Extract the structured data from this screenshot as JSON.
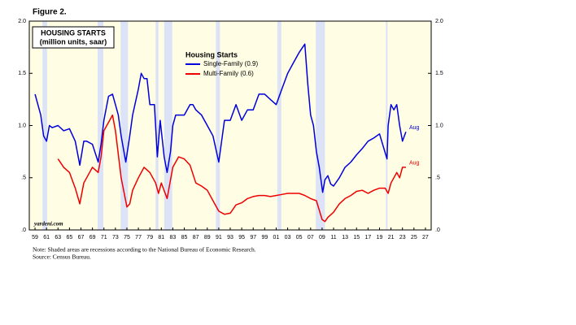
{
  "chart_data": {
    "type": "line",
    "figure_label": "Figure 2.",
    "title": "HOUSING STARTS",
    "subtitle": "(million units, saar)",
    "legend_title": "Housing Starts",
    "source_tag": "yardeni.com",
    "notes": [
      "Note: Shaded areas are recessions according to the National Bureau of Economic Research.",
      "Source: Census Bureau."
    ],
    "background": "#fffde3",
    "recession_color": "#dde3f7",
    "recessions": [
      [
        1960.3,
        1961.1
      ],
      [
        1969.9,
        1970.9
      ],
      [
        1973.9,
        1975.2
      ],
      [
        1980.0,
        1980.5
      ],
      [
        1981.5,
        1982.9
      ],
      [
        1990.5,
        1991.2
      ],
      [
        2001.2,
        2001.9
      ],
      [
        2007.9,
        2009.5
      ],
      [
        2020.1,
        2020.4
      ]
    ],
    "xlim": [
      1958,
      2028
    ],
    "ylim": [
      0,
      2
    ],
    "yticks": [
      {
        "value": 2,
        "label": "2.0"
      },
      {
        "value": 1.5,
        "label": "1.5"
      },
      {
        "value": 1,
        "label": "1.0"
      },
      {
        "value": 0.5,
        "label": ".5"
      },
      {
        "value": 0,
        "label": ".0"
      }
    ],
    "xticks": [
      {
        "value": 1959,
        "label": "59"
      },
      {
        "value": 1961,
        "label": "61"
      },
      {
        "value": 1963,
        "label": "63"
      },
      {
        "value": 1965,
        "label": "65"
      },
      {
        "value": 1967,
        "label": "67"
      },
      {
        "value": 1969,
        "label": "69"
      },
      {
        "value": 1971,
        "label": "71"
      },
      {
        "value": 1973,
        "label": "73"
      },
      {
        "value": 1975,
        "label": "75"
      },
      {
        "value": 1977,
        "label": "77"
      },
      {
        "value": 1979,
        "label": "79"
      },
      {
        "value": 1981,
        "label": "81"
      },
      {
        "value": 1983,
        "label": "83"
      },
      {
        "value": 1985,
        "label": "85"
      },
      {
        "value": 1987,
        "label": "87"
      },
      {
        "value": 1989,
        "label": "89"
      },
      {
        "value": 1991,
        "label": "91"
      },
      {
        "value": 1993,
        "label": "93"
      },
      {
        "value": 1995,
        "label": "95"
      },
      {
        "value": 1997,
        "label": "97"
      },
      {
        "value": 1999,
        "label": "99"
      },
      {
        "value": 2001,
        "label": "01"
      },
      {
        "value": 2003,
        "label": "03"
      },
      {
        "value": 2005,
        "label": "05"
      },
      {
        "value": 2007,
        "label": "07"
      },
      {
        "value": 2009,
        "label": "09"
      },
      {
        "value": 2011,
        "label": "11"
      },
      {
        "value": 2013,
        "label": "13"
      },
      {
        "value": 2015,
        "label": "15"
      },
      {
        "value": 2017,
        "label": "17"
      },
      {
        "value": 2019,
        "label": "19"
      },
      {
        "value": 2021,
        "label": "21"
      },
      {
        "value": 2023,
        "label": "23"
      },
      {
        "value": 2025,
        "label": "25"
      },
      {
        "value": 2027,
        "label": "27"
      }
    ],
    "series": [
      {
        "name": "Single-Family (0.9)",
        "color": "#0000dd",
        "end_label": "Aug",
        "x": [
          1959,
          1959.5,
          1960,
          1960.5,
          1961,
          1961.5,
          1962,
          1963,
          1964,
          1965,
          1966,
          1966.8,
          1967.5,
          1968,
          1969,
          1970,
          1970.5,
          1971,
          1971.8,
          1972.5,
          1973,
          1973.5,
          1974,
          1974.8,
          1975.5,
          1976,
          1977,
          1977.5,
          1978,
          1978.5,
          1979,
          1979.8,
          1980.3,
          1980.8,
          1981.5,
          1982,
          1982.6,
          1983,
          1983.5,
          1984,
          1985,
          1986,
          1986.5,
          1987,
          1988,
          1989,
          1990,
          1991,
          1991.5,
          1992,
          1993,
          1994,
          1995,
          1996,
          1997,
          1998,
          1999,
          2000,
          2001,
          2002,
          2003,
          2004,
          2005,
          2006,
          2006.5,
          2007,
          2007.5,
          2008,
          2008.5,
          2009.1,
          2009.5,
          2010,
          2010.5,
          2011,
          2012,
          2013,
          2014,
          2015,
          2016,
          2017,
          2018,
          2019,
          2020.3,
          2020.5,
          2021,
          2021.5,
          2022,
          2022.5,
          2023,
          2023.6
        ],
        "values": [
          1.3,
          1.2,
          1.1,
          0.9,
          0.85,
          1.0,
          0.98,
          1.0,
          0.95,
          0.97,
          0.85,
          0.62,
          0.85,
          0.85,
          0.82,
          0.65,
          0.82,
          1.05,
          1.28,
          1.3,
          1.2,
          1.1,
          0.9,
          0.65,
          0.9,
          1.1,
          1.35,
          1.5,
          1.45,
          1.45,
          1.2,
          1.2,
          0.7,
          1.05,
          0.7,
          0.55,
          0.75,
          1.0,
          1.1,
          1.1,
          1.1,
          1.2,
          1.2,
          1.15,
          1.1,
          1.0,
          0.9,
          0.65,
          0.85,
          1.05,
          1.05,
          1.2,
          1.05,
          1.15,
          1.15,
          1.3,
          1.3,
          1.25,
          1.2,
          1.35,
          1.5,
          1.6,
          1.7,
          1.78,
          1.4,
          1.1,
          1.0,
          0.75,
          0.6,
          0.36,
          0.48,
          0.52,
          0.44,
          0.42,
          0.5,
          0.6,
          0.65,
          0.72,
          0.78,
          0.85,
          0.88,
          0.92,
          0.68,
          1.0,
          1.2,
          1.15,
          1.2,
          1.0,
          0.85,
          0.94
        ]
      },
      {
        "name": "Multi-Family (0.6)",
        "color": "#ee0000",
        "end_label": "Aug",
        "x": [
          1963,
          1964,
          1965,
          1966,
          1966.8,
          1967.5,
          1968.5,
          1969,
          1970,
          1970.5,
          1971,
          1972,
          1972.5,
          1973,
          1974,
          1975,
          1975.5,
          1976,
          1977,
          1978,
          1979,
          1980,
          1980.5,
          1981,
          1982,
          1983,
          1984,
          1985,
          1986,
          1987,
          1988,
          1989,
          1990,
          1991,
          1992,
          1993,
          1994,
          1995,
          1996,
          1997,
          1998,
          1999,
          2000,
          2001,
          2002,
          2003,
          2004,
          2005,
          2006,
          2007,
          2008,
          2009,
          2009.5,
          2010,
          2011,
          2012,
          2013,
          2014,
          2015,
          2016,
          2017,
          2018,
          2019,
          2020,
          2020.5,
          2021,
          2022,
          2022.5,
          2023,
          2023.6
        ],
        "values": [
          0.68,
          0.6,
          0.55,
          0.4,
          0.25,
          0.45,
          0.55,
          0.6,
          0.55,
          0.7,
          0.95,
          1.05,
          1.1,
          0.95,
          0.5,
          0.22,
          0.25,
          0.38,
          0.5,
          0.6,
          0.55,
          0.45,
          0.35,
          0.45,
          0.3,
          0.6,
          0.7,
          0.68,
          0.62,
          0.45,
          0.42,
          0.38,
          0.28,
          0.18,
          0.15,
          0.16,
          0.24,
          0.26,
          0.3,
          0.32,
          0.33,
          0.33,
          0.32,
          0.33,
          0.34,
          0.35,
          0.35,
          0.35,
          0.33,
          0.3,
          0.28,
          0.1,
          0.08,
          0.12,
          0.17,
          0.25,
          0.3,
          0.33,
          0.37,
          0.38,
          0.35,
          0.38,
          0.4,
          0.4,
          0.35,
          0.45,
          0.55,
          0.5,
          0.6,
          0.6
        ]
      }
    ]
  }
}
